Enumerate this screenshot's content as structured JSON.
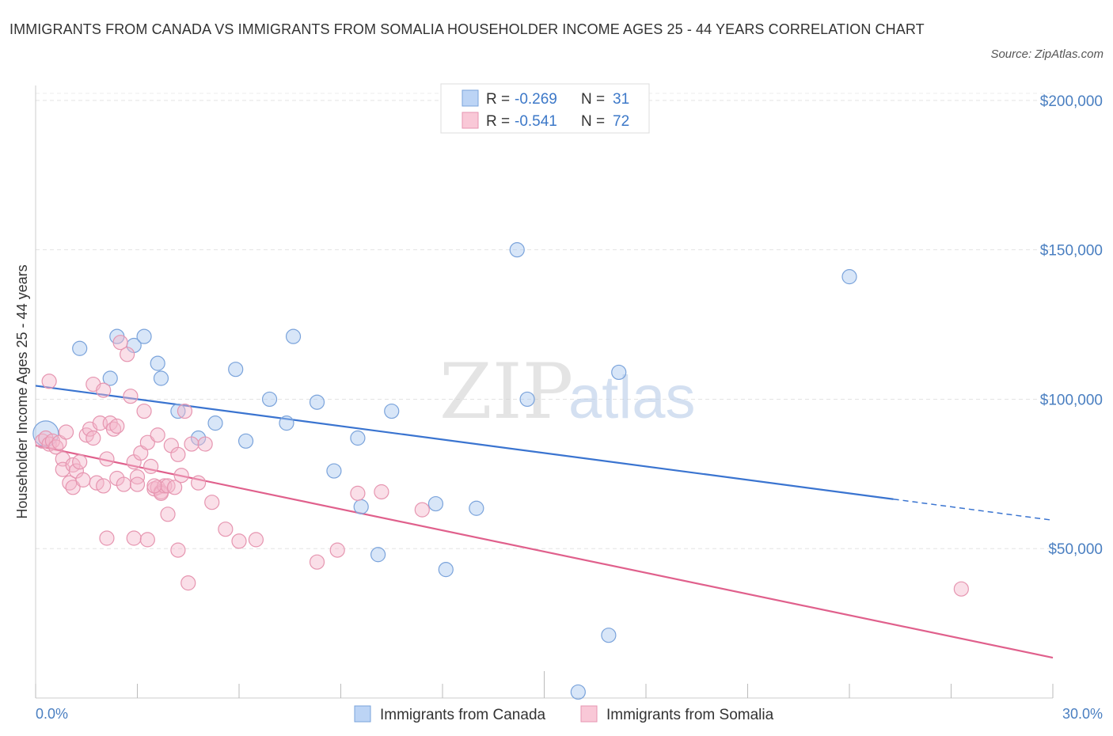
{
  "title": "IMMIGRANTS FROM CANADA VS IMMIGRANTS FROM SOMALIA HOUSEHOLDER INCOME AGES 25 - 44 YEARS CORRELATION CHART",
  "source": "Source: ZipAtlas.com",
  "watermark": {
    "zip": "ZIP",
    "atlas": "atlas"
  },
  "legend": {
    "r_label": "R =",
    "n_label": "N =",
    "rows": [
      {
        "r": "-0.269",
        "n": "31"
      },
      {
        "r": "-0.541",
        "n": "72"
      }
    ]
  },
  "chart_data": {
    "type": "scatter",
    "title": "IMMIGRANTS FROM CANADA VS IMMIGRANTS FROM SOMALIA HOUSEHOLDER INCOME AGES 25 - 44 YEARS CORRELATION CHART",
    "xlabel": "",
    "ylabel": "Householder Income Ages 25 - 44 years",
    "xlim": [
      0,
      30
    ],
    "ylim": [
      0,
      205000
    ],
    "x_tick_labels": [
      "0.0%",
      "30.0%"
    ],
    "y_ticks": [
      50000,
      100000,
      150000,
      200000
    ],
    "y_tick_labels": [
      "$50,000",
      "$100,000",
      "$150,000",
      "$200,000"
    ],
    "grid": true,
    "legend_position": "top-center",
    "series": [
      {
        "name": "Immigrants from Canada",
        "color": "#a9c8f0",
        "line_color": "#3a74d0",
        "r": -0.269,
        "n": 31,
        "trend": {
          "x0": 0,
          "y0": 104500,
          "x1": 30,
          "y1": 59500,
          "solid_until": 25.3
        },
        "points": [
          [
            0.3,
            88500
          ],
          [
            1.3,
            117000
          ],
          [
            2.4,
            121000
          ],
          [
            2.2,
            107000
          ],
          [
            2.9,
            118000
          ],
          [
            3.2,
            121000
          ],
          [
            3.6,
            112000
          ],
          [
            3.7,
            107000
          ],
          [
            4.2,
            96000
          ],
          [
            4.8,
            87000
          ],
          [
            5.3,
            92000
          ],
          [
            5.9,
            110000
          ],
          [
            6.2,
            86000
          ],
          [
            6.9,
            100000
          ],
          [
            7.4,
            92000
          ],
          [
            7.6,
            121000
          ],
          [
            8.3,
            99000
          ],
          [
            8.8,
            76000
          ],
          [
            9.5,
            87000
          ],
          [
            9.6,
            64000
          ],
          [
            10.1,
            48000
          ],
          [
            10.5,
            96000
          ],
          [
            11.8,
            65000
          ],
          [
            12.1,
            43000
          ],
          [
            13.0,
            63500
          ],
          [
            14.2,
            150000
          ],
          [
            14.5,
            100000
          ],
          [
            16.9,
            21000
          ],
          [
            17.2,
            109000
          ],
          [
            16.0,
            2000
          ],
          [
            24.0,
            141000
          ]
        ]
      },
      {
        "name": "Immigrants from Somalia",
        "color": "#f5b8cc",
        "line_color": "#e0608c",
        "r": -0.541,
        "n": 72,
        "trend": {
          "x0": 0,
          "y0": 84500,
          "x1": 30,
          "y1": 13500
        },
        "points": [
          [
            0.2,
            86000
          ],
          [
            0.3,
            87000
          ],
          [
            0.4,
            85000
          ],
          [
            0.5,
            86000
          ],
          [
            0.6,
            84000
          ],
          [
            0.7,
            85500
          ],
          [
            0.4,
            106000
          ],
          [
            0.8,
            80000
          ],
          [
            0.8,
            76500
          ],
          [
            0.9,
            89000
          ],
          [
            1.0,
            72000
          ],
          [
            1.1,
            78000
          ],
          [
            1.1,
            70500
          ],
          [
            1.2,
            76000
          ],
          [
            1.3,
            79000
          ],
          [
            1.4,
            73000
          ],
          [
            1.5,
            88000
          ],
          [
            1.6,
            90000
          ],
          [
            1.7,
            105000
          ],
          [
            1.7,
            87000
          ],
          [
            1.8,
            72000
          ],
          [
            1.9,
            92000
          ],
          [
            2.0,
            103000
          ],
          [
            2.1,
            80000
          ],
          [
            2.2,
            92000
          ],
          [
            2.3,
            90000
          ],
          [
            2.4,
            91000
          ],
          [
            2.1,
            53500
          ],
          [
            2.4,
            73500
          ],
          [
            2.5,
            119000
          ],
          [
            2.6,
            71500
          ],
          [
            2.7,
            115000
          ],
          [
            2.8,
            101000
          ],
          [
            2.9,
            79000
          ],
          [
            3.0,
            74000
          ],
          [
            2.9,
            53500
          ],
          [
            3.1,
            82000
          ],
          [
            3.2,
            96000
          ],
          [
            3.3,
            85500
          ],
          [
            3.3,
            53000
          ],
          [
            3.4,
            77500
          ],
          [
            3.5,
            70000
          ],
          [
            3.6,
            70500
          ],
          [
            3.6,
            88000
          ],
          [
            3.7,
            69000
          ],
          [
            3.7,
            68500
          ],
          [
            3.8,
            71000
          ],
          [
            3.9,
            71000
          ],
          [
            3.9,
            61500
          ],
          [
            4.0,
            84500
          ],
          [
            4.1,
            70500
          ],
          [
            4.2,
            81500
          ],
          [
            4.2,
            49500
          ],
          [
            4.3,
            74500
          ],
          [
            4.4,
            96000
          ],
          [
            4.6,
            85000
          ],
          [
            4.5,
            38500
          ],
          [
            4.8,
            72000
          ],
          [
            5.0,
            85000
          ],
          [
            5.2,
            65500
          ],
          [
            5.6,
            56500
          ],
          [
            6.0,
            52500
          ],
          [
            6.5,
            53000
          ],
          [
            8.3,
            45500
          ],
          [
            8.9,
            49500
          ],
          [
            9.5,
            68500
          ],
          [
            10.2,
            69000
          ],
          [
            11.4,
            63000
          ],
          [
            3.0,
            71500
          ],
          [
            3.5,
            71000
          ],
          [
            27.3,
            36500
          ],
          [
            2.0,
            71000
          ]
        ]
      }
    ]
  }
}
